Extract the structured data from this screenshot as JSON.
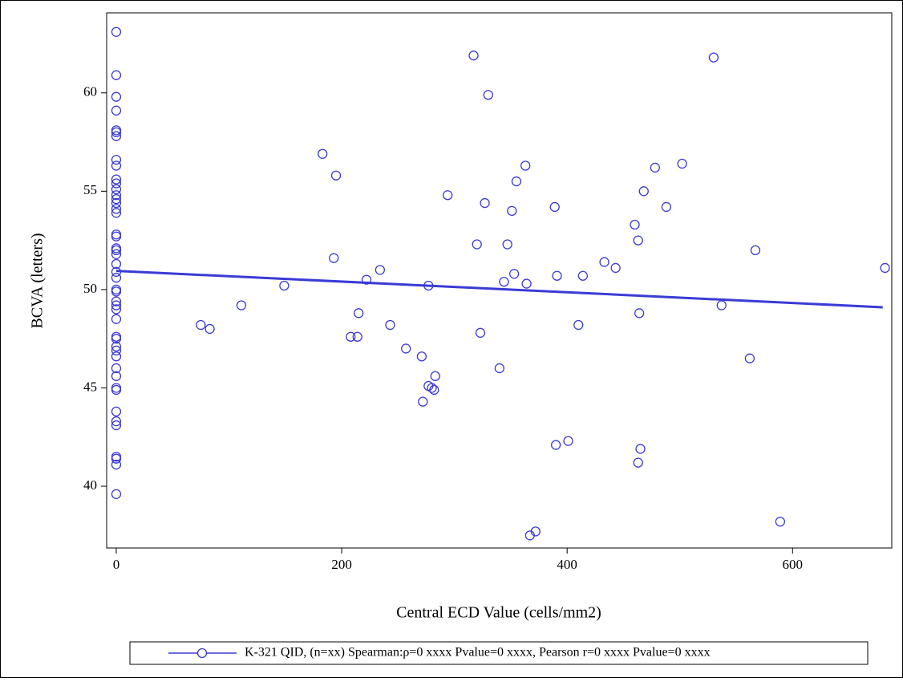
{
  "chart_data": {
    "type": "scatter",
    "x_label": "Central ECD Value (cells/mm2)",
    "y_label": "BCVA (letters)",
    "xlim": [
      -8.5,
      688
    ],
    "ylim": [
      36.86,
      64.07
    ],
    "xticks": [
      0,
      200,
      400,
      600
    ],
    "yticks": [
      40,
      45,
      50,
      55,
      60
    ],
    "color": "#3b3bd6",
    "series": [
      {
        "name": "K-321 QID, (n=xx) Spearman:ρ=0 xxxx Pvalue=0 xxxx, Pearson r=0 xxxx Pvalue=0 xxxx",
        "color": "#3b3bd6",
        "x": [
          0,
          0,
          0,
          0,
          0,
          0,
          0,
          0,
          0,
          0,
          0,
          0,
          0,
          0,
          0,
          0,
          0,
          0,
          0,
          0,
          0,
          0,
          0,
          0,
          0,
          0,
          0,
          0,
          0,
          0,
          0,
          0,
          0,
          0,
          0,
          0,
          0,
          0,
          0,
          0,
          0,
          0,
          0,
          0,
          0,
          0,
          0,
          75,
          83,
          111,
          149,
          183,
          195,
          193,
          208,
          214,
          215,
          222,
          234,
          243,
          257,
          271,
          277,
          277,
          280,
          282,
          272,
          283,
          294,
          317,
          320,
          323,
          327,
          330,
          340,
          344,
          347,
          351,
          353,
          355,
          363,
          364,
          367,
          372,
          389,
          391,
          390,
          401,
          410,
          414,
          433,
          443,
          460,
          463,
          464,
          465,
          463,
          468,
          478,
          488,
          502,
          530,
          537,
          562,
          567,
          589,
          682
        ],
        "values": [
          63.1,
          60.9,
          59.8,
          59.1,
          58.1,
          58.0,
          57.8,
          56.6,
          56.3,
          55.6,
          55.4,
          55.1,
          54.8,
          54.6,
          54.4,
          54.1,
          53.9,
          52.8,
          52.7,
          52.1,
          52.0,
          51.8,
          51.3,
          50.9,
          50.6,
          50.0,
          49.9,
          49.4,
          49.2,
          49.0,
          48.5,
          47.6,
          47.5,
          47.1,
          46.9,
          46.6,
          46.0,
          45.6,
          45.0,
          44.9,
          43.8,
          43.3,
          43.1,
          41.5,
          41.4,
          41.1,
          39.6,
          48.2,
          48.0,
          49.2,
          50.2,
          56.9,
          55.8,
          51.6,
          47.6,
          47.6,
          48.8,
          50.5,
          51.0,
          48.2,
          47.0,
          46.6,
          50.2,
          45.1,
          45.0,
          44.9,
          44.3,
          45.6,
          54.8,
          61.9,
          52.3,
          47.8,
          54.4,
          59.9,
          46.0,
          50.4,
          52.3,
          54.0,
          50.8,
          55.5,
          56.3,
          50.3,
          37.5,
          37.7,
          54.2,
          50.7,
          42.1,
          42.3,
          48.2,
          50.7,
          51.4,
          51.1,
          53.3,
          52.5,
          48.8,
          41.9,
          41.2,
          55.0,
          56.2,
          54.2,
          56.4,
          61.8,
          49.2,
          46.5,
          52.0,
          38.2,
          51.1
        ],
        "fit": {
          "x": [
            0,
            680
          ],
          "values": [
            50.95,
            49.1
          ]
        }
      }
    ]
  }
}
